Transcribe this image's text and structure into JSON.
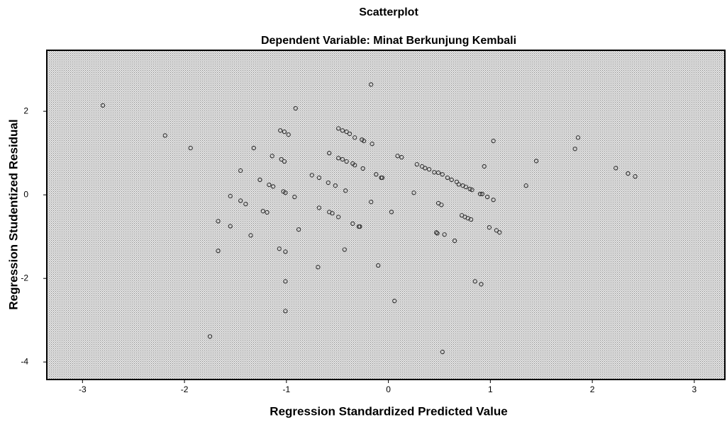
{
  "chart_data": {
    "type": "scatter",
    "title": "Scatterplot",
    "subtitle": "Dependent Variable: Minat Berkunjung Kembali",
    "x_label": "Regression Standardized Predicted Value",
    "y_label": "Regression Studentized Residual",
    "color": "#333333",
    "xlim": [
      -3.35,
      3.3
    ],
    "ylim": [
      -4.42,
      3.46
    ],
    "xticks": [
      -3,
      -2,
      -1,
      0,
      1,
      2,
      3
    ],
    "yticks": [
      -4,
      -2,
      0,
      2
    ],
    "x": [
      -2.8,
      -2.19,
      -1.94,
      -1.75,
      -1.67,
      -1.67,
      -1.55,
      -1.55,
      -1.45,
      -1.45,
      -1.4,
      -1.35,
      -1.32,
      -1.26,
      -1.23,
      -1.19,
      -1.17,
      -1.14,
      -1.13,
      -1.07,
      -1.06,
      -1.05,
      -1.03,
      -1.02,
      -1.02,
      -1.01,
      -1.01,
      -1.01,
      -1.01,
      -0.98,
      -0.92,
      -0.91,
      -0.88,
      -0.75,
      -0.69,
      -0.68,
      -0.68,
      -0.59,
      -0.58,
      -0.58,
      -0.55,
      -0.52,
      -0.49,
      -0.49,
      -0.49,
      -0.45,
      -0.45,
      -0.43,
      -0.42,
      -0.41,
      -0.41,
      -0.38,
      -0.35,
      -0.35,
      -0.33,
      -0.33,
      -0.29,
      -0.28,
      -0.26,
      -0.25,
      -0.24,
      -0.17,
      -0.17,
      -0.16,
      -0.12,
      -0.1,
      -0.07,
      -0.06,
      0.03,
      0.06,
      0.09,
      0.13,
      0.25,
      0.28,
      0.33,
      0.36,
      0.4,
      0.45,
      0.47,
      0.48,
      0.49,
      0.49,
      0.52,
      0.53,
      0.53,
      0.55,
      0.58,
      0.62,
      0.65,
      0.67,
      0.69,
      0.72,
      0.73,
      0.75,
      0.76,
      0.78,
      0.8,
      0.81,
      0.82,
      0.85,
      0.9,
      0.91,
      0.92,
      0.94,
      0.97,
      0.99,
      1.03,
      1.03,
      1.06,
      1.09,
      1.35,
      1.45,
      1.83,
      1.86,
      2.23,
      2.35,
      2.42
    ],
    "values": [
      2.14,
      1.42,
      1.12,
      -3.39,
      -0.63,
      -1.34,
      -0.03,
      -0.75,
      0.58,
      -0.14,
      -0.22,
      -0.97,
      1.12,
      0.36,
      -0.39,
      -0.42,
      0.24,
      0.93,
      0.2,
      -1.29,
      1.54,
      0.85,
      0.08,
      1.51,
      0.8,
      0.05,
      -1.36,
      -2.07,
      -2.78,
      1.44,
      -0.05,
      2.07,
      -0.83,
      0.47,
      -1.73,
      0.41,
      -0.31,
      0.29,
      1.0,
      -0.41,
      -0.44,
      0.22,
      1.59,
      0.88,
      -0.53,
      1.54,
      0.85,
      -1.31,
      0.1,
      1.51,
      0.8,
      1.46,
      0.75,
      -0.69,
      0.71,
      1.37,
      -0.76,
      -0.76,
      1.32,
      0.63,
      1.29,
      2.64,
      -0.17,
      1.22,
      0.49,
      -1.69,
      0.41,
      0.41,
      -0.41,
      -2.54,
      0.93,
      0.9,
      0.05,
      0.73,
      0.68,
      0.64,
      0.61,
      0.54,
      -0.9,
      -0.92,
      0.53,
      -0.2,
      -0.24,
      0.49,
      -3.76,
      -0.95,
      0.41,
      0.36,
      -1.1,
      0.31,
      0.25,
      -0.49,
      0.22,
      -0.53,
      0.19,
      -0.56,
      0.14,
      -0.59,
      0.12,
      -2.07,
      0.02,
      -2.14,
      0.02,
      0.68,
      -0.05,
      -0.78,
      1.29,
      -0.12,
      -0.85,
      -0.9,
      0.22,
      0.81,
      1.1,
      1.37,
      0.64,
      0.51,
      0.44
    ]
  }
}
